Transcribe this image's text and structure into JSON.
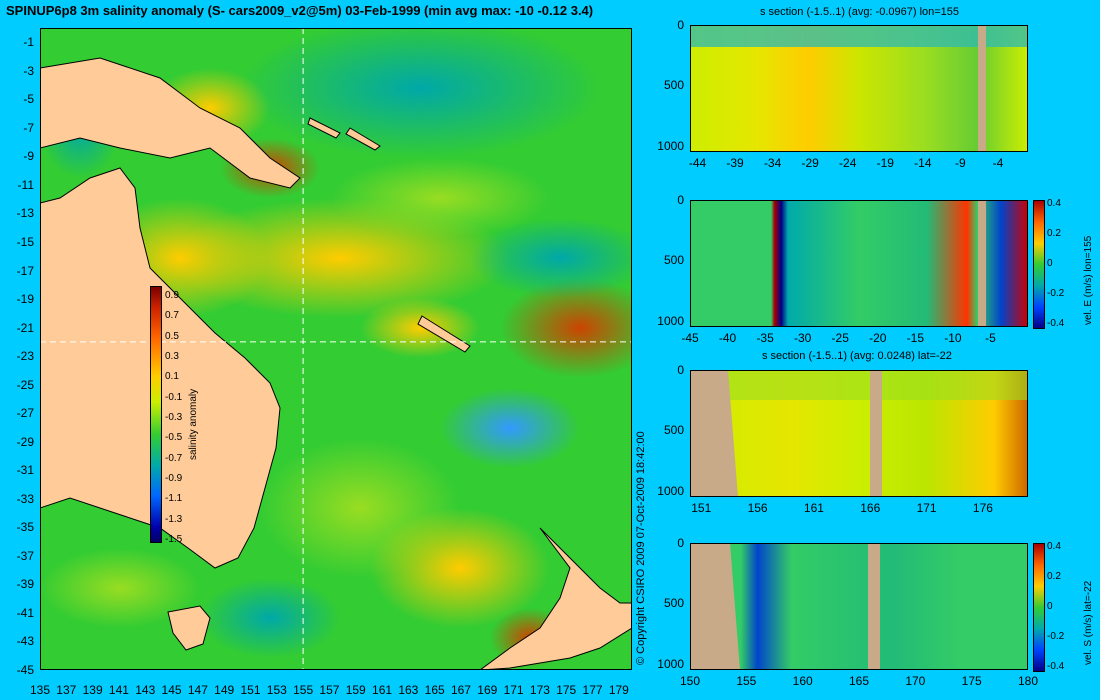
{
  "title": "SPINUP6p8 3m salinity anomaly (S- cars2009_v2@5m) 03-Feb-1999 (min avg max: -10 -0.12 3.4)",
  "copyright": "© Copyright CSIRO 2009   07-Oct-2009 18:42:00",
  "colors": {
    "background": "#00ccff",
    "land": "#ffcc99",
    "section_land": "#c8aa88"
  },
  "chart_data": [
    {
      "type": "heatmap",
      "id": "map",
      "xlim": [
        135,
        180
      ],
      "ylim": [
        -45,
        0
      ],
      "x_ticks": [
        135,
        137,
        139,
        141,
        143,
        145,
        147,
        149,
        151,
        153,
        155,
        157,
        159,
        161,
        163,
        165,
        167,
        169,
        171,
        173,
        175,
        177,
        179
      ],
      "y_ticks": [
        -1,
        -3,
        -5,
        -7,
        -9,
        -11,
        -13,
        -15,
        -17,
        -19,
        -21,
        -23,
        -25,
        -27,
        -29,
        -31,
        -33,
        -35,
        -37,
        -39,
        -41,
        -43,
        -45
      ],
      "section_lon": 155,
      "section_lat": -22,
      "colorbar": {
        "label": "salinity anomaly",
        "ticks": [
          "0.9",
          "0.7",
          "0.5",
          "0.3",
          "0.1",
          "-0.1",
          "-0.3",
          "-0.5",
          "-0.7",
          "-0.9",
          "-1.1",
          "-1.3",
          "-1.5"
        ],
        "range": [
          -1.6,
          1.0
        ]
      }
    },
    {
      "type": "heatmap",
      "id": "s-section-lon",
      "title": "s section (-1.5..1) (avg: -0.0967) lon=155",
      "xlim": [
        -45,
        0
      ],
      "ylim": [
        1050,
        0
      ],
      "x_ticks": [
        "-44",
        "-39",
        "-34",
        "-29",
        "-24",
        "-19",
        "-14",
        "-9",
        "-4"
      ],
      "y_ticks": [
        "0",
        "500",
        "1000"
      ]
    },
    {
      "type": "heatmap",
      "id": "vel-e-section",
      "xlim": [
        -45,
        0
      ],
      "ylim": [
        1050,
        0
      ],
      "x_ticks": [
        "-45",
        "-40",
        "-35",
        "-30",
        "-25",
        "-20",
        "-15",
        "-10",
        "-5"
      ],
      "y_ticks": [
        "0",
        "500",
        "1000"
      ],
      "colorbar": {
        "label": "vel. E (m/s) lon=155",
        "ticks": [
          "0.4",
          "0.2",
          "0",
          "-0.2",
          "-0.4"
        ]
      }
    },
    {
      "type": "heatmap",
      "id": "s-section-lat",
      "title": "s section (-1.5..1) (avg: 0.0248) lat=-22",
      "xlim": [
        150,
        180
      ],
      "ylim": [
        1050,
        0
      ],
      "x_ticks": [
        "151",
        "156",
        "161",
        "166",
        "171",
        "176"
      ],
      "y_ticks": [
        "0",
        "500",
        "1000"
      ]
    },
    {
      "type": "heatmap",
      "id": "vel-s-section",
      "xlim": [
        150,
        180
      ],
      "ylim": [
        1050,
        0
      ],
      "x_ticks": [
        "150",
        "155",
        "160",
        "165",
        "170",
        "175",
        "180"
      ],
      "y_ticks": [
        "0",
        "500",
        "1000"
      ],
      "colorbar": {
        "label": "vel. S (m/s) lat=-22",
        "ticks": [
          "0.4",
          "0.2",
          "0",
          "-0.2",
          "-0.4"
        ]
      }
    }
  ]
}
